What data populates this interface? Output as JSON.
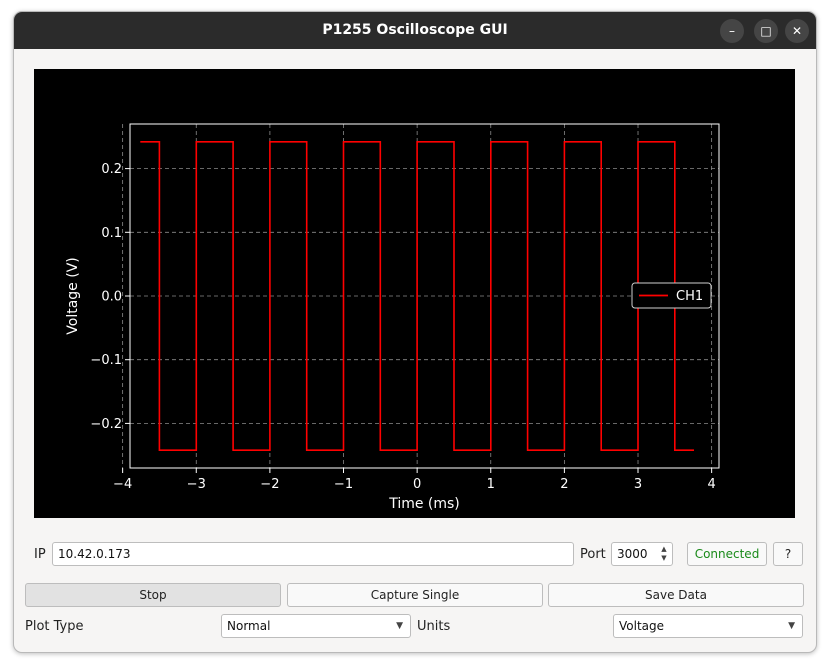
{
  "window": {
    "title": "P1255 Oscilloscope GUI",
    "minimize_glyph": "–",
    "maximize_glyph": "□",
    "close_glyph": "✕"
  },
  "chart_data": {
    "type": "line",
    "title": "",
    "xlabel": "Time (ms)",
    "ylabel": "Voltage (V)",
    "xlim": [
      -3.9,
      4.1
    ],
    "ylim": [
      -0.27,
      0.27
    ],
    "xticks": [
      -4,
      -3,
      -2,
      -1,
      0,
      1,
      2,
      3,
      4
    ],
    "xtick_labels": [
      "−4",
      "−3",
      "−2",
      "−1",
      "0",
      "1",
      "2",
      "3",
      "4"
    ],
    "yticks": [
      0.2,
      0.1,
      0.0,
      -0.1,
      -0.2
    ],
    "ytick_labels": [
      "0.2",
      "0.1",
      "0.0",
      "−0.1",
      "−0.2"
    ],
    "grid": true,
    "legend": "center-right",
    "series": [
      {
        "name": "CH1",
        "color": "#ff0000",
        "waveform": "square",
        "x": [
          -3.76,
          -3.5,
          -3.5,
          -3.0,
          -3.0,
          -2.5,
          -2.5,
          -2.0,
          -2.0,
          -1.5,
          -1.5,
          -1.0,
          -1.0,
          -0.5,
          -0.5,
          0.0,
          0.0,
          0.5,
          0.5,
          1.0,
          1.0,
          1.5,
          1.5,
          2.0,
          2.0,
          2.5,
          2.5,
          3.0,
          3.0,
          3.5,
          3.5,
          3.76
        ],
        "y": [
          0.242,
          0.242,
          -0.242,
          -0.242,
          0.242,
          0.242,
          -0.242,
          -0.242,
          0.242,
          0.242,
          -0.242,
          -0.242,
          0.242,
          0.242,
          -0.242,
          -0.242,
          0.242,
          0.242,
          -0.242,
          -0.242,
          0.242,
          0.242,
          -0.242,
          -0.242,
          0.242,
          0.242,
          -0.242,
          -0.242,
          0.242,
          0.242,
          -0.242,
          -0.242
        ]
      }
    ]
  },
  "controls": {
    "ip_label": "IP",
    "ip_value": "10.42.0.173",
    "port_label": "Port",
    "port_value": "3000",
    "connect_label": "Connected",
    "connect_color": "#1a8a1a",
    "help_label": "?",
    "stop_label": "Stop",
    "capture_label": "Capture Single",
    "save_label": "Save Data",
    "plot_type_label": "Plot Type",
    "plot_type_value": "Normal",
    "units_label": "Units",
    "units_value": "Voltage"
  }
}
